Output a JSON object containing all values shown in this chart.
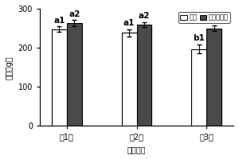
{
  "categories": [
    "第1茗",
    "第2茗",
    "第3茗"
  ],
  "control_values": [
    248,
    238,
    197
  ],
  "treatment_values": [
    263,
    260,
    250
  ],
  "control_errors": [
    7,
    10,
    12
  ],
  "treatment_errors": [
    8,
    6,
    8
  ],
  "control_labels_top": [
    "a1",
    "a1",
    "b1"
  ],
  "treatment_labels_top": [
    "a2",
    "a2",
    "a2"
  ],
  "control_color": "#ffffff",
  "treatment_color": "#4a4a4a",
  "bar_edge_color": "#000000",
  "xlabel": "连作茗数",
  "ylabel": "产量（g）",
  "ylim": [
    0,
    300
  ],
  "yticks": [
    0,
    100,
    200,
    300
  ],
  "legend_labels": [
    "对照",
    "微生物肥料"
  ],
  "bar_width": 0.28,
  "group_positions": [
    0.22,
    0.5,
    0.78
  ],
  "annot_fontsize": 7.5,
  "label_fontsize": 7,
  "tick_fontsize": 7,
  "legend_fontsize": 6
}
